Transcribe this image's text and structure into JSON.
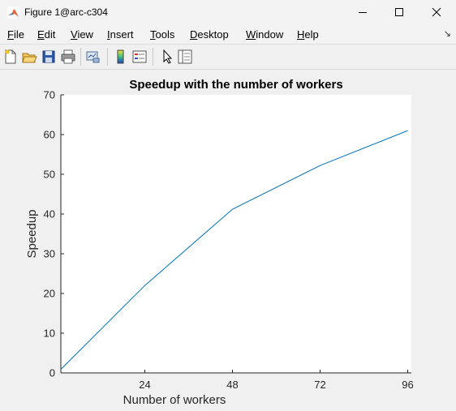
{
  "window": {
    "title": "Figure 1@arc-c304"
  },
  "menu": [
    "File",
    "Edit",
    "View",
    "Insert",
    "Tools",
    "Desktop",
    "Window",
    "Help"
  ],
  "toolbar_icons": [
    "new-figure-icon",
    "open-file-icon",
    "save-icon",
    "print-icon",
    "link-plot-icon",
    "colorbar-icon",
    "legend-icon",
    "pointer-icon",
    "property-inspector-icon"
  ],
  "colors": {
    "line": "#0072bd",
    "axes_bg": "#ffffff",
    "figure_bg": "#f0f0f0"
  },
  "chart_data": {
    "type": "line",
    "title": "Speedup with the number of workers",
    "xlabel": "Number of workers",
    "ylabel": "Speedup",
    "xlim": [
      1,
      97
    ],
    "ylim": [
      0,
      70
    ],
    "xticks": [
      24,
      48,
      72,
      96
    ],
    "yticks": [
      0,
      10,
      20,
      30,
      40,
      50,
      60,
      70
    ],
    "grid": false,
    "series": [
      {
        "x": [
          1,
          24,
          48,
          72,
          96
        ],
        "y": [
          0.9,
          22,
          41.2,
          52.2,
          61
        ],
        "color": "#0072bd"
      }
    ]
  }
}
